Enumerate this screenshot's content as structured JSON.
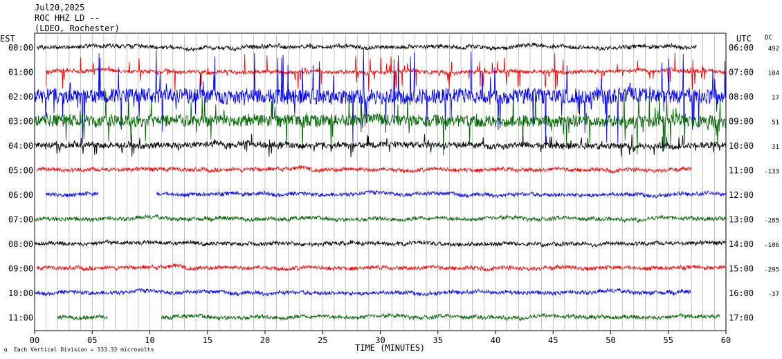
{
  "header": {
    "date": "Jul20,2025",
    "station": "ROC HHZ LD --",
    "network": "(LDEO, Rochester)"
  },
  "left_tz": "EST",
  "right_tz": "UTC",
  "dc_header": "DC",
  "footer": {
    "xlabel": "TIME (MINUTES)",
    "scale_note": "Each Vertical Division =  333.33 microvolts"
  },
  "colors": {
    "black": "#000000",
    "red": "#ff0000",
    "blue": "#0000ff",
    "green": "#006400"
  },
  "chart_data": {
    "type": "line",
    "xlabel": "TIME (MINUTES)",
    "xlim": [
      0,
      60
    ],
    "x_ticks": [
      "00",
      "05",
      "10",
      "15",
      "20",
      "25",
      "30",
      "35",
      "40",
      "45",
      "50",
      "55",
      "60"
    ],
    "rows": [
      {
        "est": "00:00",
        "utc": "06:00",
        "dc": "492",
        "color": "black",
        "start": 0.2,
        "end": 57.5,
        "gaps": [],
        "amp": 0.22,
        "burst": 0
      },
      {
        "est": "01:00",
        "utc": "07:00",
        "dc": "104",
        "color": "red",
        "start": 1.0,
        "end": 60,
        "gaps": [],
        "amp": 0.22,
        "burst": 0.9
      },
      {
        "est": "02:00",
        "utc": "08:00",
        "dc": "17",
        "color": "blue",
        "start": 0,
        "end": 60,
        "gaps": [],
        "amp": 0.9,
        "burst": 2.2
      },
      {
        "est": "03:00",
        "utc": "09:00",
        "dc": "51",
        "color": "green",
        "start": 0,
        "end": 60,
        "gaps": [],
        "amp": 0.7,
        "burst": 1.5
      },
      {
        "est": "04:00",
        "utc": "10:00",
        "dc": "31",
        "color": "black",
        "start": 0,
        "end": 60,
        "gaps": [],
        "amp": 0.35,
        "burst": 0.5
      },
      {
        "est": "05:00",
        "utc": "11:00",
        "dc": "-133",
        "color": "red",
        "start": 0.2,
        "end": 57.0,
        "gaps": [],
        "amp": 0.22,
        "burst": 0
      },
      {
        "est": "06:00",
        "utc": "12:00",
        "dc": "",
        "color": "blue",
        "start": 1.0,
        "end": 60,
        "gaps": [
          [
            5.5,
            10.6
          ]
        ],
        "amp": 0.22,
        "burst": 0
      },
      {
        "est": "07:00",
        "utc": "13:00",
        "dc": "-285",
        "color": "green",
        "start": 0,
        "end": 60,
        "gaps": [],
        "amp": 0.22,
        "burst": 0
      },
      {
        "est": "08:00",
        "utc": "14:00",
        "dc": "-106",
        "color": "black",
        "start": 0,
        "end": 60,
        "gaps": [],
        "amp": 0.22,
        "burst": 0
      },
      {
        "est": "09:00",
        "utc": "15:00",
        "dc": "-295",
        "color": "red",
        "start": 0.2,
        "end": 60,
        "gaps": [],
        "amp": 0.22,
        "burst": 0
      },
      {
        "est": "10:00",
        "utc": "16:00",
        "dc": "-37",
        "color": "blue",
        "start": 0,
        "end": 57.0,
        "gaps": [],
        "amp": 0.22,
        "burst": 0
      },
      {
        "est": "11:00",
        "utc": "17:00",
        "dc": "",
        "color": "green",
        "start": 2.0,
        "end": 59.5,
        "gaps": [
          [
            6.3,
            11.0
          ]
        ],
        "amp": 0.22,
        "burst": 0
      }
    ]
  }
}
